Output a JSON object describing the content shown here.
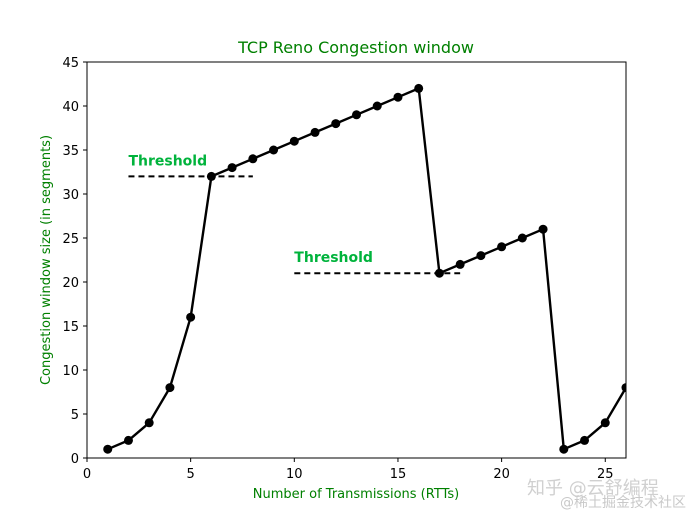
{
  "chart_data": {
    "type": "line",
    "title": "TCP Reno Congestion window",
    "xlabel": "Number of Transmissions (RTTs)",
    "ylabel": "Congestion window size (in segments)",
    "xlim": [
      0,
      26
    ],
    "ylim": [
      0,
      45
    ],
    "xticks": [
      0,
      5,
      10,
      15,
      20,
      25
    ],
    "yticks": [
      0,
      5,
      10,
      15,
      20,
      25,
      30,
      35,
      40,
      45
    ],
    "grid": false,
    "series": [
      {
        "x": [
          1,
          2,
          3,
          4,
          5,
          6,
          7,
          8,
          9,
          10,
          11,
          12,
          13,
          14,
          15,
          16,
          17,
          18,
          19,
          20,
          21,
          22,
          23,
          24,
          25,
          26
        ],
        "y": [
          1,
          2,
          4,
          8,
          16,
          32,
          33,
          34,
          35,
          36,
          37,
          38,
          39,
          40,
          41,
          42,
          21,
          22,
          23,
          24,
          25,
          26,
          1,
          2,
          4,
          8
        ],
        "color": "#000000"
      }
    ],
    "annotations": [
      {
        "text": "Threshold",
        "x": [
          2,
          8
        ],
        "y": 32
      },
      {
        "text": "Threshold",
        "x": [
          10,
          18
        ],
        "y": 21
      }
    ],
    "colors": {
      "title": "#008000",
      "axis_label": "#008000",
      "annotation": "#00b33c",
      "line": "#000000"
    }
  },
  "watermark": {
    "line1": "知乎 @云舒编程",
    "line2": "@稀土掘金技术社区"
  }
}
